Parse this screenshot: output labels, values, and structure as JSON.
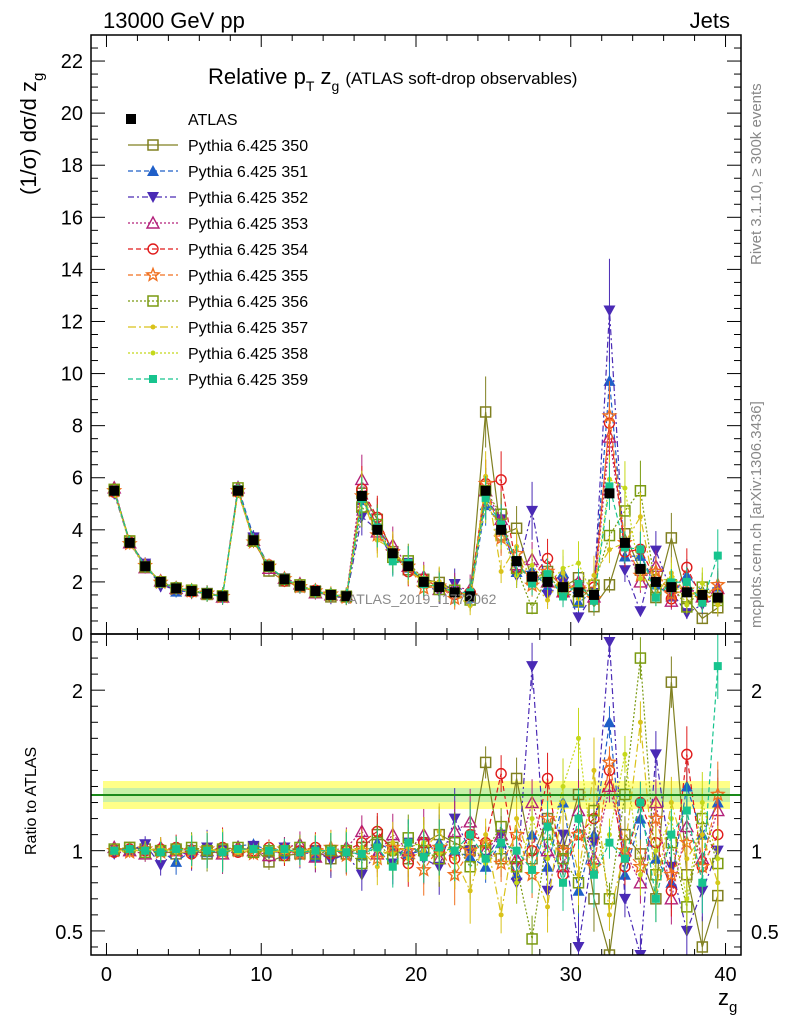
{
  "header": {
    "energy_label": "13000 GeV pp",
    "process_label": "Jets"
  },
  "side_labels": {
    "rivet": "Rivet 3.1.10, ≥ 300k events",
    "mcplots": "mcplots.cern.ch [arXiv:1306.3436]"
  },
  "watermark": "ATLAS_2019_I1772062",
  "chart_data": {
    "type": "scatter",
    "title_main": "Relative p",
    "title_sub1": "T",
    "title_mid": " z",
    "title_sub2": "g",
    "title_paren": "(ATLAS soft-drop observables)",
    "ylabel_main": "(1/σ) dσ/d z",
    "ylabel_sub": "g",
    "xlabel_main": "z",
    "xlabel_sub": "g",
    "ratio_ylabel": "Ratio to ATLAS",
    "xlim": [
      -1,
      41
    ],
    "ylim": [
      0,
      23
    ],
    "ratio_ylim": [
      0.35,
      2.35
    ],
    "x_ticks": [
      "0",
      "10",
      "20",
      "30",
      "40"
    ],
    "y_ticks": [
      "0",
      "2",
      "4",
      "6",
      "8",
      "10",
      "12",
      "14",
      "16",
      "18",
      "20",
      "22"
    ],
    "ratio_ticks": [
      "0.5",
      "1",
      "2"
    ],
    "data": {
      "name": "ATLAS",
      "x": [
        0.5,
        1.5,
        2.5,
        3.5,
        4.5,
        5.5,
        6.5,
        7.5,
        8.5,
        9.5,
        10.5,
        11.5,
        12.5,
        13.5,
        14.5,
        15.5,
        16.5,
        17.5,
        18.5,
        19.5,
        20.5,
        21.5,
        22.5,
        23.5,
        24.5,
        25.5,
        26.5,
        27.5,
        28.5,
        29.5,
        30.5,
        31.5,
        32.5,
        33.5,
        34.5,
        35.5,
        36.5,
        37.5,
        38.5,
        39.5
      ],
      "y": [
        5.5,
        3.5,
        2.6,
        2.0,
        1.75,
        1.65,
        1.55,
        1.45,
        5.5,
        3.6,
        2.6,
        2.1,
        1.85,
        1.65,
        1.5,
        1.45,
        5.3,
        4.0,
        3.1,
        2.6,
        2.0,
        1.8,
        1.6,
        1.45,
        5.5,
        4.0,
        2.8,
        2.2,
        2.0,
        1.8,
        1.6,
        1.5,
        5.4,
        3.5,
        2.5,
        2.0,
        1.8,
        1.6,
        1.5,
        1.4
      ]
    },
    "series": [
      {
        "name": "Pythia 6.425 350",
        "color": "#808021",
        "marker": "square-open",
        "dash": ""
      },
      {
        "name": "Pythia 6.425 351",
        "color": "#1f5fc8",
        "marker": "triangle-up",
        "dash": "5,3"
      },
      {
        "name": "Pythia 6.425 352",
        "color": "#4a2ab5",
        "marker": "triangle-down",
        "dash": "6,3,2,3"
      },
      {
        "name": "Pythia 6.425 353",
        "color": "#b3207a",
        "marker": "triangle-open",
        "dash": "2,2"
      },
      {
        "name": "Pythia 6.425 354",
        "color": "#e01b1b",
        "marker": "circle-open",
        "dash": "5,3"
      },
      {
        "name": "Pythia 6.425 355",
        "color": "#f07020",
        "marker": "star",
        "dash": "5,3"
      },
      {
        "name": "Pythia 6.425 356",
        "color": "#7a9a10",
        "marker": "square-open",
        "dash": "2,2"
      },
      {
        "name": "Pythia 6.425 357",
        "color": "#d9c21a",
        "marker": "dot",
        "dash": "8,3,2,3"
      },
      {
        "name": "Pythia 6.425 358",
        "color": "#c4d81a",
        "marker": "dot",
        "dash": "2,2"
      },
      {
        "name": "Pythia 6.425 359",
        "color": "#17c48e",
        "marker": "square",
        "dash": "5,3"
      }
    ],
    "ratio": [
      [
        1.0,
        1.02,
        1.01,
        1.0,
        0.98,
        1.0,
        0.98,
        1.0,
        1.0,
        1.02,
        0.93,
        0.97,
        0.98,
        1.0,
        0.95,
        0.98,
        1.02,
        1.1,
        1.02,
        0.95,
        1.05,
        1.1,
        1.05,
        1.0,
        1.55,
        0.95,
        1.45,
        0.95,
        1.2,
        1.0,
        1.35,
        0.7,
        0.35,
        1.1,
        0.98,
        0.7,
        2.05,
        0.85,
        0.4,
        0.72
      ],
      [
        1.01,
        1.0,
        1.02,
        1.0,
        0.93,
        1.0,
        0.99,
        1.0,
        1.03,
        1.04,
        1.0,
        0.98,
        1.01,
        0.96,
        1.0,
        1.0,
        0.97,
        1.05,
        1.0,
        0.98,
        1.0,
        1.05,
        1.0,
        0.96,
        0.9,
        1.05,
        0.85,
        1.1,
        0.9,
        1.3,
        0.75,
        1.1,
        1.8,
        0.85,
        1.2,
        0.95,
        0.8,
        1.4,
        1.1,
        1.3
      ],
      [
        0.98,
        1.0,
        1.04,
        0.91,
        1.0,
        0.97,
        1.02,
        1.0,
        1.0,
        1.03,
        0.98,
        1.02,
        0.97,
        1.0,
        0.94,
        0.98,
        0.85,
        1.0,
        0.92,
        1.05,
        0.95,
        0.9,
        1.2,
        1.0,
        0.95,
        1.1,
        0.8,
        2.15,
        0.75,
        1.1,
        0.4,
        1.05,
        2.3,
        0.7,
        0.35,
        1.6,
        0.9,
        0.5,
        0.75,
        1.0
      ],
      [
        1.02,
        1.0,
        0.98,
        1.02,
        1.0,
        1.01,
        1.0,
        0.98,
        1.02,
        1.0,
        0.97,
        1.02,
        1.04,
        0.96,
        1.0,
        1.02,
        1.12,
        0.98,
        1.1,
        1.0,
        1.1,
        0.95,
        1.12,
        1.18,
        1.0,
        1.1,
        0.95,
        1.3,
        1.0,
        0.9,
        1.25,
        0.95,
        1.4,
        1.0,
        0.8,
        1.3,
        0.7,
        1.15,
        0.95,
        1.25
      ],
      [
        0.99,
        1.01,
        1.0,
        1.01,
        1.02,
        0.98,
        1.0,
        1.02,
        0.99,
        1.0,
        1.02,
        0.97,
        1.0,
        1.02,
        0.98,
        1.0,
        1.05,
        1.12,
        1.0,
        0.92,
        1.05,
        1.0,
        0.95,
        1.1,
        1.05,
        1.48,
        0.9,
        1.0,
        1.45,
        0.85,
        1.1,
        1.2,
        1.5,
        0.9,
        1.3,
        1.05,
        0.75,
        1.6,
        0.9,
        1.1
      ],
      [
        1.0,
        0.99,
        1.01,
        0.99,
        1.0,
        1.0,
        1.01,
        0.99,
        1.0,
        0.98,
        1.0,
        1.01,
        0.98,
        1.0,
        1.02,
        0.97,
        1.0,
        0.95,
        1.02,
        1.0,
        0.88,
        1.02,
        0.85,
        1.0,
        1.05,
        0.92,
        1.1,
        0.85,
        1.2,
        1.0,
        1.1,
        0.9,
        1.55,
        1.0,
        0.9,
        1.2,
        0.85,
        1.05,
        0.9,
        1.35
      ],
      [
        1.01,
        1.02,
        0.99,
        1.0,
        1.01,
        1.02,
        1.0,
        1.01,
        1.02,
        0.99,
        1.0,
        1.0,
        1.02,
        0.98,
        1.0,
        1.0,
        0.92,
        1.05,
        0.95,
        1.08,
        1.0,
        0.95,
        1.05,
        0.9,
        1.0,
        1.15,
        0.9,
        0.45,
        1.1,
        0.95,
        0.8,
        1.25,
        0.7,
        1.35,
        2.2,
        0.85,
        1.05,
        0.65,
        1.2,
        0.92
      ],
      [
        1.0,
        1.0,
        1.0,
        1.02,
        0.99,
        0.99,
        1.01,
        1.0,
        1.0,
        1.01,
        0.99,
        1.0,
        1.0,
        1.01,
        0.99,
        1.01,
        1.0,
        0.9,
        1.05,
        0.95,
        1.0,
        1.12,
        0.95,
        0.75,
        1.1,
        0.6,
        1.2,
        0.9,
        0.65,
        1.3,
        0.85,
        1.5,
        0.6,
        1.0,
        1.8,
        0.75,
        1.3,
        0.95,
        1.1,
        0.8
      ],
      [
        0.99,
        1.0,
        1.01,
        1.0,
        1.0,
        1.01,
        0.99,
        1.01,
        0.99,
        1.0,
        1.01,
        0.99,
        1.0,
        0.99,
        1.01,
        1.0,
        1.02,
        1.0,
        0.98,
        1.02,
        1.05,
        0.98,
        1.0,
        1.05,
        0.92,
        1.0,
        0.8,
        1.2,
        0.95,
        1.4,
        1.7,
        0.9,
        1.1,
        1.6,
        0.85,
        1.0,
        1.2,
        0.7,
        1.3,
        0.95
      ],
      [
        1.0,
        1.01,
        1.0,
        0.99,
        1.01,
        1.0,
        1.0,
        0.99,
        1.01,
        1.01,
        1.0,
        1.01,
        0.99,
        1.0,
        1.0,
        0.99,
        0.98,
        1.02,
        0.9,
        1.05,
        0.96,
        1.02,
        1.0,
        1.1,
        0.95,
        1.05,
        1.0,
        0.88,
        1.15,
        0.8,
        1.2,
        0.85,
        1.05,
        0.95,
        1.3,
        0.7,
        1.1,
        1.25,
        0.8,
        2.15
      ]
    ]
  }
}
